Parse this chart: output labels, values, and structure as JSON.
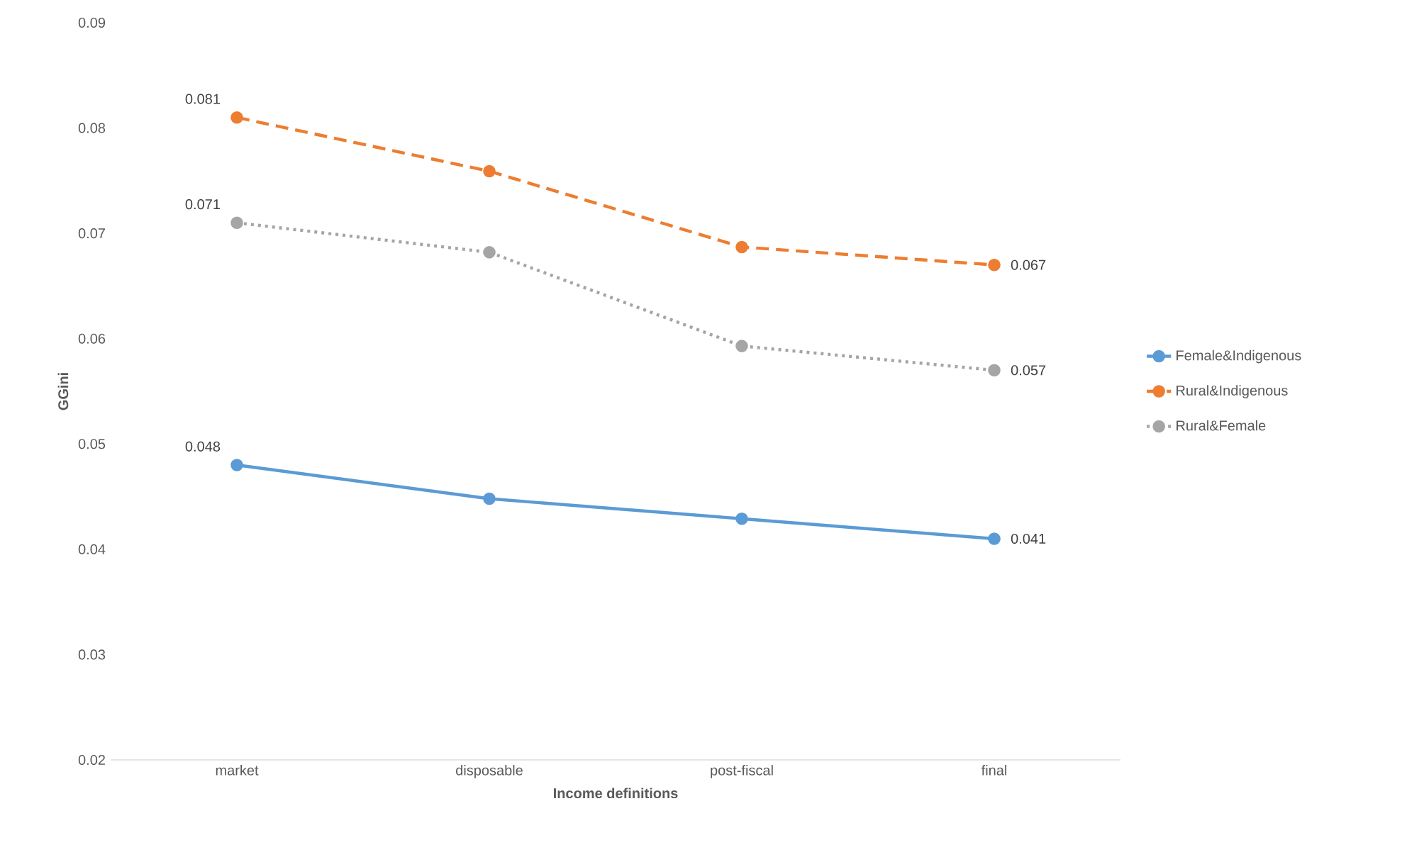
{
  "chart_data": {
    "type": "line",
    "xlabel": "Income definitions",
    "ylabel": "GGini",
    "categories": [
      "market",
      "disposable",
      "post-fiscal",
      "final"
    ],
    "series": [
      {
        "name": "Female&Indigenous",
        "color": "#5b9bd5",
        "line_style": "solid",
        "values": [
          0.048,
          0.0448,
          0.0429,
          0.041
        ],
        "value_labels": [
          "0.048",
          null,
          null,
          "0.041"
        ]
      },
      {
        "name": "Rural&Indigenous",
        "color": "#ed7d31",
        "line_style": "dashed",
        "values": [
          0.081,
          0.0759,
          0.0687,
          0.067
        ],
        "value_labels": [
          "0.081",
          null,
          null,
          "0.067"
        ]
      },
      {
        "name": "Rural&Female",
        "color": "#a5a5a5",
        "line_style": "dotted",
        "values": [
          0.071,
          0.0682,
          0.0593,
          0.057
        ],
        "value_labels": [
          "0.071",
          null,
          null,
          "0.057"
        ]
      }
    ],
    "ylim": [
      0.02,
      0.09
    ],
    "yticks": [
      0.02,
      0.03,
      0.04,
      0.05,
      0.06,
      0.07,
      0.08,
      0.09
    ],
    "marker": "circle",
    "legend": "right",
    "grid": false
  }
}
